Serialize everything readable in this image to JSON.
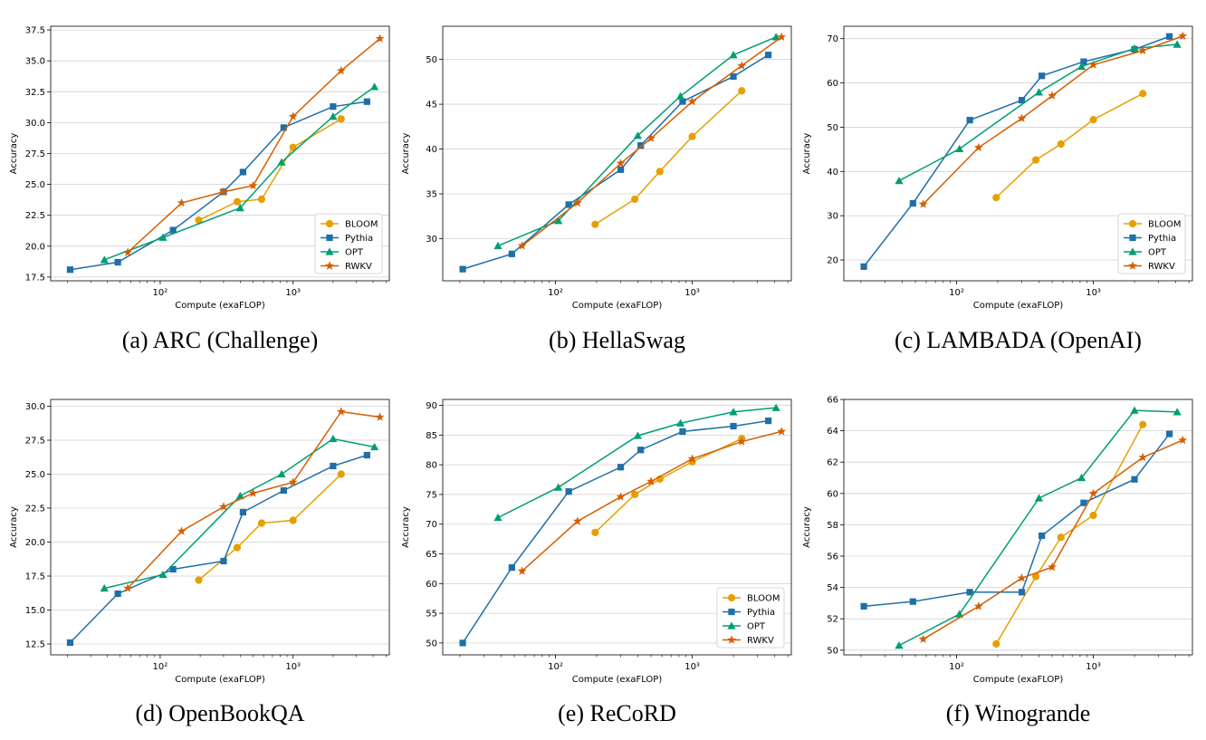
{
  "legend_entries": [
    "BLOOM",
    "Pythia",
    "OPT",
    "RWKV"
  ],
  "series_colors": {
    "BLOOM": "#E69F00",
    "Pythia": "#1F6FA8",
    "OPT": "#009E73",
    "RWKV": "#D55E00"
  },
  "series_markers": {
    "BLOOM": "circle",
    "Pythia": "square",
    "OPT": "triangle",
    "RWKV": "star"
  },
  "chart_data": [
    {
      "type": "line",
      "panel": "a",
      "caption": "(a) ARC (Challenge)",
      "xlabel": "Compute (exaFLOP)",
      "ylabel": "Accuracy",
      "xscale": "log",
      "xlim": [
        15,
        5300
      ],
      "ylim": [
        17.2,
        37.8
      ],
      "x_ticks": [
        100,
        1000
      ],
      "x_tick_labels": [
        "10²",
        "10³"
      ],
      "y_ticks": [
        17.5,
        20.0,
        22.5,
        25.0,
        27.5,
        30.0,
        32.5,
        35.0,
        37.5
      ],
      "y_tick_labels": [
        "17.5",
        "20.0",
        "22.5",
        "25.0",
        "27.5",
        "30.0",
        "32.5",
        "35.0",
        "37.5"
      ],
      "grid": "y",
      "legend": "lower-right",
      "series": [
        {
          "name": "BLOOM",
          "x": [
            195,
            380,
            580,
            1000,
            2300
          ],
          "y": [
            22.1,
            23.6,
            23.8,
            28.0,
            30.3
          ]
        },
        {
          "name": "Pythia",
          "x": [
            21,
            48,
            125,
            300,
            420,
            850,
            2000,
            3600
          ],
          "y": [
            18.1,
            18.7,
            21.3,
            24.4,
            26.0,
            29.6,
            31.3,
            31.7
          ]
        },
        {
          "name": "OPT",
          "x": [
            38,
            105,
            400,
            820,
            2000,
            4100
          ],
          "y": [
            18.9,
            20.7,
            23.1,
            26.8,
            30.5,
            32.9
          ]
        },
        {
          "name": "RWKV",
          "x": [
            57,
            145,
            300,
            500,
            1000,
            2300,
            4500
          ],
          "y": [
            19.5,
            23.5,
            24.4,
            24.9,
            30.5,
            34.2,
            36.8
          ]
        }
      ]
    },
    {
      "type": "line",
      "panel": "b",
      "caption": "(b) HellaSwag",
      "xlabel": "Compute (exaFLOP)",
      "ylabel": "Accuracy",
      "xscale": "log",
      "xlim": [
        15,
        5300
      ],
      "ylim": [
        25.3,
        53.7
      ],
      "x_ticks": [
        100,
        1000
      ],
      "x_tick_labels": [
        "10²",
        "10³"
      ],
      "y_ticks": [
        30,
        35,
        40,
        45,
        50
      ],
      "y_tick_labels": [
        "30",
        "35",
        "40",
        "45",
        "50"
      ],
      "grid": "y",
      "legend": "none",
      "series": [
        {
          "name": "BLOOM",
          "x": [
            195,
            380,
            580,
            1000,
            2300
          ],
          "y": [
            31.6,
            34.4,
            37.5,
            41.4,
            46.5
          ]
        },
        {
          "name": "Pythia",
          "x": [
            21,
            48,
            125,
            300,
            420,
            850,
            2000,
            3600
          ],
          "y": [
            26.6,
            28.3,
            33.8,
            37.7,
            40.4,
            45.3,
            48.1,
            50.5
          ]
        },
        {
          "name": "OPT",
          "x": [
            38,
            105,
            400,
            820,
            2000,
            4100
          ],
          "y": [
            29.2,
            32.0,
            41.5,
            45.9,
            50.5,
            52.5
          ]
        },
        {
          "name": "RWKV",
          "x": [
            57,
            145,
            300,
            500,
            1000,
            2300,
            4500
          ],
          "y": [
            29.2,
            34.0,
            38.4,
            41.2,
            45.3,
            49.3,
            52.5
          ]
        }
      ]
    },
    {
      "type": "line",
      "panel": "c",
      "caption": "(c) LAMBADA (OpenAI)",
      "xlabel": "Compute (exaFLOP)",
      "ylabel": "Accuracy",
      "xscale": "log",
      "xlim": [
        15,
        5300
      ],
      "ylim": [
        15.3,
        72.8
      ],
      "x_ticks": [
        100,
        1000
      ],
      "x_tick_labels": [
        "10²",
        "10³"
      ],
      "y_ticks": [
        20,
        30,
        40,
        50,
        60,
        70
      ],
      "y_tick_labels": [
        "20",
        "30",
        "40",
        "50",
        "60",
        "70"
      ],
      "grid": "y",
      "legend": "lower-right",
      "series": [
        {
          "name": "BLOOM",
          "x": [
            195,
            380,
            580,
            1000,
            2300
          ],
          "y": [
            34.1,
            42.6,
            46.2,
            51.7,
            57.6
          ]
        },
        {
          "name": "Pythia",
          "x": [
            21,
            48,
            125,
            300,
            420,
            850,
            2000,
            3600
          ],
          "y": [
            18.5,
            32.8,
            51.6,
            56.1,
            61.6,
            64.8,
            67.6,
            70.5
          ]
        },
        {
          "name": "OPT",
          "x": [
            38,
            105,
            400,
            820,
            2000,
            4100
          ],
          "y": [
            37.9,
            45.1,
            57.9,
            63.7,
            67.8,
            68.7
          ]
        },
        {
          "name": "RWKV",
          "x": [
            57,
            145,
            300,
            500,
            1000,
            2300,
            4500
          ],
          "y": [
            32.6,
            45.4,
            52.0,
            57.1,
            64.1,
            67.3,
            70.6
          ]
        }
      ]
    },
    {
      "type": "line",
      "panel": "d",
      "caption": "(d) OpenBookQA",
      "xlabel": "Compute (exaFLOP)",
      "ylabel": "Accuracy",
      "xscale": "log",
      "xlim": [
        15,
        5300
      ],
      "ylim": [
        11.7,
        30.5
      ],
      "x_ticks": [
        100,
        1000
      ],
      "x_tick_labels": [
        "10²",
        "10³"
      ],
      "y_ticks": [
        12.5,
        15.0,
        17.5,
        20.0,
        22.5,
        25.0,
        27.5,
        30.0
      ],
      "y_tick_labels": [
        "12.5",
        "15.0",
        "17.5",
        "20.0",
        "22.5",
        "25.0",
        "27.5",
        "30.0"
      ],
      "grid": "y",
      "legend": "none",
      "series": [
        {
          "name": "BLOOM",
          "x": [
            195,
            380,
            580,
            1000,
            2300
          ],
          "y": [
            17.2,
            19.6,
            21.4,
            21.6,
            25.0
          ]
        },
        {
          "name": "Pythia",
          "x": [
            21,
            48,
            125,
            300,
            420,
            850,
            2000,
            3600
          ],
          "y": [
            12.6,
            16.2,
            18.0,
            18.6,
            22.2,
            23.8,
            25.6,
            26.4
          ]
        },
        {
          "name": "OPT",
          "x": [
            38,
            105,
            400,
            820,
            2000,
            4100
          ],
          "y": [
            16.6,
            17.6,
            23.4,
            25.0,
            27.6,
            27.0
          ]
        },
        {
          "name": "RWKV",
          "x": [
            57,
            145,
            300,
            500,
            1000,
            2300,
            4500
          ],
          "y": [
            16.6,
            20.8,
            22.6,
            23.6,
            24.4,
            29.6,
            29.2
          ]
        }
      ]
    },
    {
      "type": "line",
      "panel": "e",
      "caption": "(e) ReCoRD",
      "xlabel": "Compute (exaFLOP)",
      "ylabel": "Accuracy",
      "xscale": "log",
      "xlim": [
        15,
        5300
      ],
      "ylim": [
        48.0,
        91.0
      ],
      "x_ticks": [
        100,
        1000
      ],
      "x_tick_labels": [
        "10²",
        "10³"
      ],
      "y_ticks": [
        50,
        55,
        60,
        65,
        70,
        75,
        80,
        85,
        90
      ],
      "y_tick_labels": [
        "50",
        "55",
        "60",
        "65",
        "70",
        "75",
        "80",
        "85",
        "90"
      ],
      "grid": "y",
      "legend": "lower-right",
      "series": [
        {
          "name": "BLOOM",
          "x": [
            195,
            380,
            580,
            1000,
            2300
          ],
          "y": [
            68.6,
            75.0,
            77.6,
            80.5,
            84.4
          ]
        },
        {
          "name": "Pythia",
          "x": [
            21,
            48,
            125,
            300,
            420,
            850,
            2000,
            3600
          ],
          "y": [
            50.0,
            62.7,
            75.5,
            79.6,
            82.5,
            85.6,
            86.5,
            87.4
          ]
        },
        {
          "name": "OPT",
          "x": [
            38,
            105,
            400,
            820,
            2000,
            4100
          ],
          "y": [
            71.1,
            76.2,
            84.9,
            87.0,
            88.9,
            89.6
          ]
        },
        {
          "name": "RWKV",
          "x": [
            57,
            145,
            300,
            500,
            1000,
            2300,
            4500
          ],
          "y": [
            62.1,
            70.5,
            74.6,
            77.2,
            81.0,
            83.9,
            85.6
          ]
        }
      ]
    },
    {
      "type": "line",
      "panel": "f",
      "caption": "(f) Winogrande",
      "xlabel": "Compute (exaFLOP)",
      "ylabel": "Accuracy",
      "xscale": "log",
      "xlim": [
        15,
        5300
      ],
      "ylim": [
        49.7,
        66.0
      ],
      "x_ticks": [
        100,
        1000
      ],
      "x_tick_labels": [
        "10²",
        "10³"
      ],
      "y_ticks": [
        50,
        52,
        54,
        56,
        58,
        60,
        62,
        64,
        66
      ],
      "y_tick_labels": [
        "50",
        "52",
        "54",
        "56",
        "58",
        "60",
        "62",
        "64",
        "66"
      ],
      "grid": "y",
      "legend": "none",
      "series": [
        {
          "name": "BLOOM",
          "x": [
            195,
            380,
            580,
            1000,
            2300
          ],
          "y": [
            50.4,
            54.7,
            57.2,
            58.6,
            64.4
          ]
        },
        {
          "name": "Pythia",
          "x": [
            21,
            48,
            125,
            300,
            420,
            850,
            2000,
            3600
          ],
          "y": [
            52.8,
            53.1,
            53.7,
            53.7,
            57.3,
            59.4,
            60.9,
            63.8
          ]
        },
        {
          "name": "OPT",
          "x": [
            38,
            105,
            400,
            820,
            2000,
            4100
          ],
          "y": [
            50.3,
            52.3,
            59.7,
            61.0,
            65.3,
            65.2
          ]
        },
        {
          "name": "RWKV",
          "x": [
            57,
            145,
            300,
            500,
            1000,
            2300,
            4500
          ],
          "y": [
            50.7,
            52.8,
            54.6,
            55.3,
            60.0,
            62.3,
            63.4
          ]
        }
      ]
    }
  ]
}
